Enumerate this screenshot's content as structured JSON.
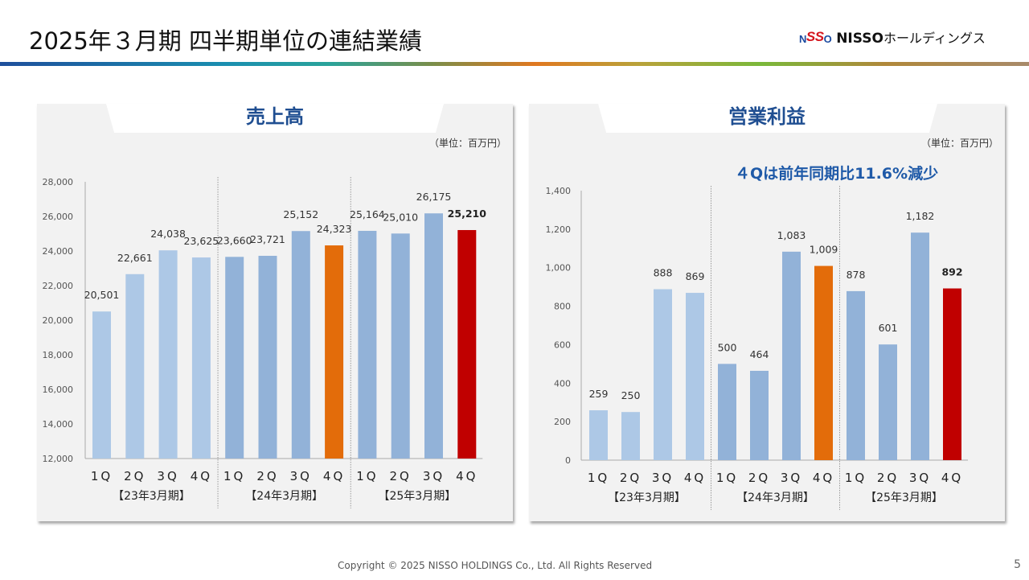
{
  "header": {
    "title": "2025年３月期 四半期単位の連結業績",
    "logo_mark": "NISSO",
    "logo_name_latin": "NISSO",
    "logo_name_kana": "ホールディングス"
  },
  "footer": {
    "copyright": "Copyright © 2025 NISSO HOLDINGS Co., Ltd. All Rights Reserved",
    "page_number": "5"
  },
  "colors": {
    "prior_year_bar": "#adc8e6",
    "mid_year_bar": "#92b2d8",
    "prior_4q_bar": "#e36c0a",
    "current_4q_bar": "#c00000",
    "title_blue": "#1f4e91"
  },
  "chart_data": [
    {
      "type": "bar",
      "title": "売上高",
      "unit_label": "（単位：百万円）",
      "xlabel": "",
      "ylabel": "",
      "ylim": [
        12000,
        28000
      ],
      "yticks": [
        12000,
        14000,
        16000,
        18000,
        20000,
        22000,
        24000,
        26000,
        28000
      ],
      "ytick_labels": [
        "12,000",
        "14,000",
        "16,000",
        "18,000",
        "20,000",
        "22,000",
        "24,000",
        "26,000",
        "28,000"
      ],
      "grid": false,
      "categories": [
        "1Q",
        "2Q",
        "3Q",
        "4Q",
        "1Q",
        "2Q",
        "3Q",
        "4Q",
        "1Q",
        "2Q",
        "3Q",
        "4Q"
      ],
      "groups": [
        "【23年3月期】",
        "【24年3月期】",
        "【25年3月期】"
      ],
      "values": [
        20501,
        22661,
        24038,
        23625,
        23660,
        23721,
        25152,
        24323,
        25164,
        25010,
        26175,
        25210
      ],
      "value_labels": [
        "20,501",
        "22,661",
        "24,038",
        "23,625",
        "23,660",
        "23,721",
        "25,152",
        "24,323",
        "25,164",
        "25,010",
        "26,175",
        "25,210"
      ],
      "bar_colors": [
        "#adc8e6",
        "#adc8e6",
        "#adc8e6",
        "#adc8e6",
        "#92b2d8",
        "#92b2d8",
        "#92b2d8",
        "#e36c0a",
        "#92b2d8",
        "#92b2d8",
        "#92b2d8",
        "#c00000"
      ],
      "bold_labels": [
        false,
        false,
        false,
        false,
        false,
        false,
        false,
        false,
        false,
        false,
        false,
        true
      ]
    },
    {
      "type": "bar",
      "title": "営業利益",
      "unit_label": "（単位：百万円）",
      "annotation": "４Qは前年同期比11.6%減少",
      "xlabel": "",
      "ylabel": "",
      "ylim": [
        0,
        1400
      ],
      "yticks": [
        0,
        200,
        400,
        600,
        800,
        1000,
        1200,
        1400
      ],
      "ytick_labels": [
        "0",
        "200",
        "400",
        "600",
        "800",
        "1,000",
        "1,200",
        "1,400"
      ],
      "grid": false,
      "categories": [
        "1Q",
        "2Q",
        "3Q",
        "4Q",
        "1Q",
        "2Q",
        "3Q",
        "4Q",
        "1Q",
        "2Q",
        "3Q",
        "4Q"
      ],
      "groups": [
        "【23年3月期】",
        "【24年3月期】",
        "【25年3月期】"
      ],
      "values": [
        259,
        250,
        888,
        869,
        500,
        464,
        1083,
        1009,
        878,
        601,
        1182,
        892
      ],
      "value_labels": [
        "259",
        "250",
        "888",
        "869",
        "500",
        "464",
        "1,083",
        "1,009",
        "878",
        "601",
        "1,182",
        "892"
      ],
      "bar_colors": [
        "#adc8e6",
        "#adc8e6",
        "#adc8e6",
        "#adc8e6",
        "#92b2d8",
        "#92b2d8",
        "#92b2d8",
        "#e36c0a",
        "#92b2d8",
        "#92b2d8",
        "#92b2d8",
        "#c00000"
      ],
      "bold_labels": [
        false,
        false,
        false,
        false,
        false,
        false,
        false,
        false,
        false,
        false,
        false,
        true
      ]
    }
  ]
}
